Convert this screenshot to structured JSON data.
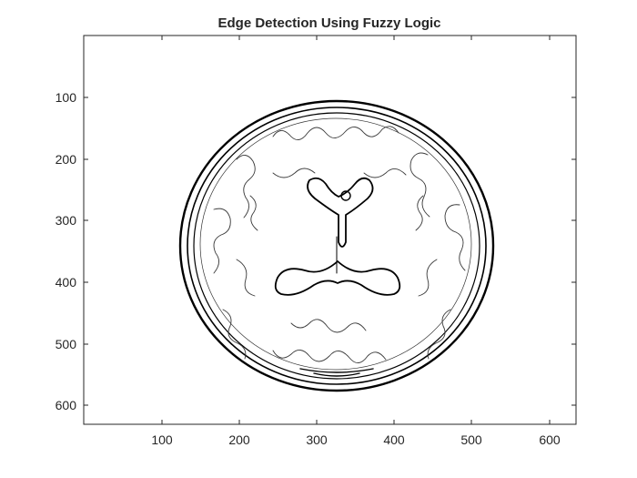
{
  "figure": {
    "title": "Edge Detection Using Fuzzy Logic",
    "icon": "brain-edge-image"
  },
  "axes": {
    "y_ticks": [
      {
        "label": "100"
      },
      {
        "label": "200"
      },
      {
        "label": "300"
      },
      {
        "label": "400"
      },
      {
        "label": "500"
      },
      {
        "label": "600"
      }
    ],
    "x_ticks": [
      {
        "label": "100"
      },
      {
        "label": "200"
      },
      {
        "label": "300"
      },
      {
        "label": "400"
      },
      {
        "label": "500"
      },
      {
        "label": "600"
      }
    ],
    "frame_color": "#262626",
    "image_background": "#ffffff",
    "edge_color": "#000000"
  }
}
